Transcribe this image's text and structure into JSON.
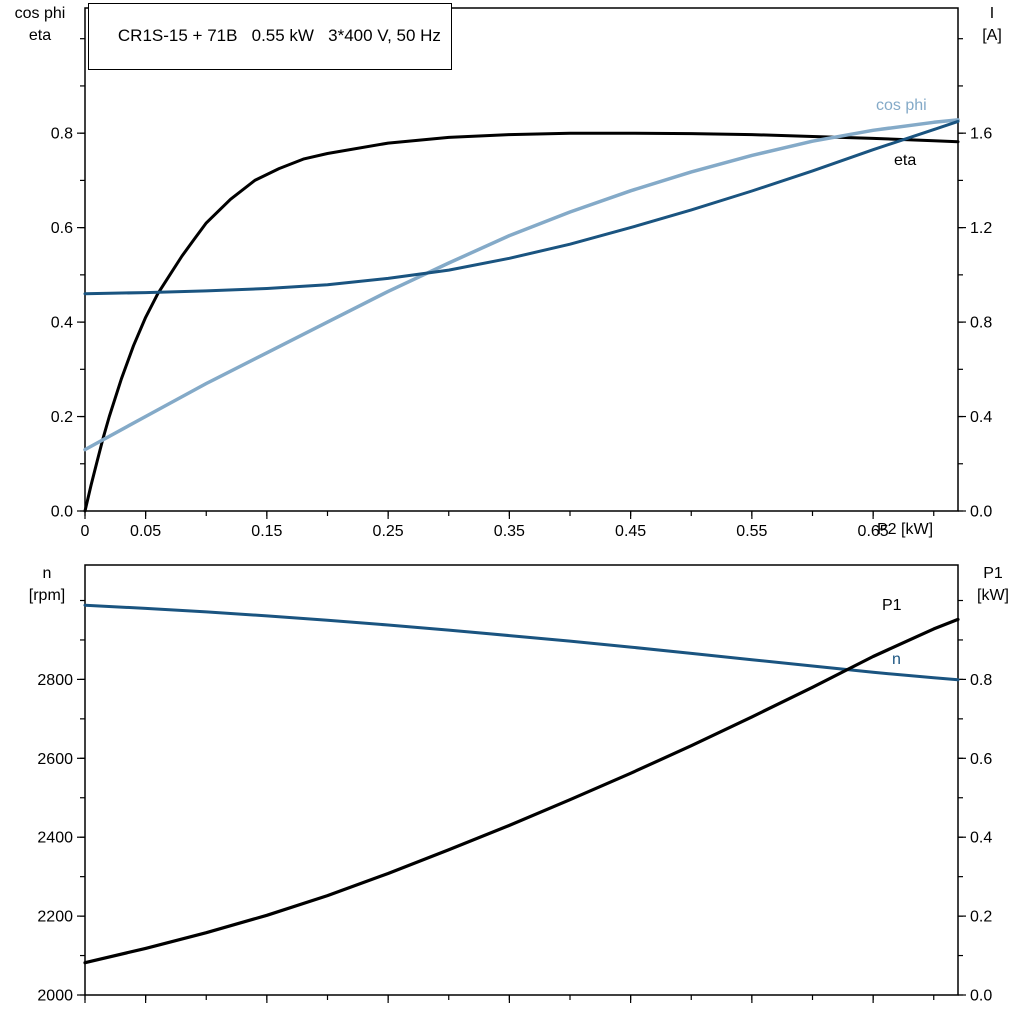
{
  "colors": {
    "black": "#000000",
    "dark_blue": "#1a5480",
    "light_blue": "#84aac8"
  },
  "chart_data": [
    {
      "type": "line",
      "title": "CR1S-15 + 71B   0.55 kW   3*400 V, 50 Hz",
      "grid": false,
      "legend_position": "inline-curve-labels",
      "x_axis": {
        "label": "P2 [kW]",
        "min": 0,
        "max": 0.72,
        "minor_step": 0.05,
        "major_ticks": [
          0,
          0.05,
          0.15,
          0.25,
          0.35,
          0.45,
          0.55,
          0.65
        ],
        "tick_labels": [
          "0",
          "0.05",
          "0.15",
          "0.25",
          "0.35",
          "0.45",
          "0.55",
          "0.65"
        ]
      },
      "left_axis": {
        "label_line1": "cos phi",
        "label_line2": "eta",
        "min": 0,
        "max": 1.065,
        "minor_step": 0.1,
        "major_ticks": [
          0,
          0.2,
          0.4,
          0.6,
          0.8
        ],
        "tick_labels": [
          "0.0",
          "0.2",
          "0.4",
          "0.6",
          "0.8"
        ]
      },
      "right_axis": {
        "label_line1": "I",
        "label_line2": "[A]",
        "min": 0,
        "max": 2.13,
        "minor_step": 0.2,
        "major_ticks": [
          0,
          0.4,
          0.8,
          1.2,
          1.6
        ],
        "tick_labels": [
          "0.0",
          "0.4",
          "0.8",
          "1.2",
          "1.6"
        ]
      },
      "series": [
        {
          "name": "eta",
          "label": "eta",
          "axis": "left",
          "color": "#000000",
          "width": 3,
          "points": [
            [
              0,
              0
            ],
            [
              0.005,
              0.055
            ],
            [
              0.01,
              0.105
            ],
            [
              0.015,
              0.155
            ],
            [
              0.02,
              0.2
            ],
            [
              0.03,
              0.28
            ],
            [
              0.04,
              0.35
            ],
            [
              0.05,
              0.41
            ],
            [
              0.06,
              0.46
            ],
            [
              0.07,
              0.5
            ],
            [
              0.08,
              0.54
            ],
            [
              0.09,
              0.575
            ],
            [
              0.1,
              0.61
            ],
            [
              0.12,
              0.66
            ],
            [
              0.14,
              0.7
            ],
            [
              0.16,
              0.725
            ],
            [
              0.18,
              0.745
            ],
            [
              0.2,
              0.757
            ],
            [
              0.25,
              0.779
            ],
            [
              0.3,
              0.791
            ],
            [
              0.35,
              0.797
            ],
            [
              0.4,
              0.8
            ],
            [
              0.45,
              0.8
            ],
            [
              0.5,
              0.799
            ],
            [
              0.55,
              0.797
            ],
            [
              0.6,
              0.793
            ],
            [
              0.65,
              0.789
            ],
            [
              0.7,
              0.784
            ],
            [
              0.72,
              0.782
            ]
          ]
        },
        {
          "name": "cos phi",
          "label": "cos phi",
          "axis": "left",
          "color": "#84aac8",
          "width": 3.5,
          "points": [
            [
              0,
              0.13
            ],
            [
              0.05,
              0.2
            ],
            [
              0.1,
              0.27
            ],
            [
              0.15,
              0.335
            ],
            [
              0.2,
              0.4
            ],
            [
              0.25,
              0.465
            ],
            [
              0.3,
              0.525
            ],
            [
              0.35,
              0.583
            ],
            [
              0.4,
              0.633
            ],
            [
              0.45,
              0.678
            ],
            [
              0.5,
              0.718
            ],
            [
              0.55,
              0.753
            ],
            [
              0.6,
              0.783
            ],
            [
              0.65,
              0.806
            ],
            [
              0.7,
              0.823
            ],
            [
              0.72,
              0.828
            ]
          ]
        },
        {
          "name": "I",
          "label": "",
          "axis": "right",
          "color": "#1a5480",
          "width": 3,
          "points": [
            [
              0,
              0.92
            ],
            [
              0.05,
              0.925
            ],
            [
              0.1,
              0.932
            ],
            [
              0.15,
              0.942
            ],
            [
              0.2,
              0.958
            ],
            [
              0.25,
              0.985
            ],
            [
              0.3,
              1.02
            ],
            [
              0.35,
              1.07
            ],
            [
              0.4,
              1.13
            ],
            [
              0.45,
              1.2
            ],
            [
              0.5,
              1.275
            ],
            [
              0.55,
              1.355
            ],
            [
              0.6,
              1.44
            ],
            [
              0.65,
              1.53
            ],
            [
              0.7,
              1.615
            ],
            [
              0.72,
              1.65
            ]
          ]
        }
      ]
    },
    {
      "type": "line",
      "title": "",
      "grid": false,
      "x_axis": {
        "label": "",
        "min": 0,
        "max": 0.72,
        "minor_step": 0.05,
        "major_ticks": [
          0,
          0.05,
          0.15,
          0.25,
          0.35,
          0.45,
          0.55,
          0.65
        ],
        "tick_labels": []
      },
      "left_axis": {
        "label_line1": "n",
        "label_line2": "[rpm]",
        "min": 2000,
        "max": 3090,
        "minor_step": 100,
        "major_ticks": [
          2000,
          2200,
          2400,
          2600,
          2800
        ],
        "tick_labels": [
          "2000",
          "2200",
          "2400",
          "2600",
          "2800"
        ]
      },
      "right_axis": {
        "label_line1": "P1",
        "label_line2": "[kW]",
        "min": 0,
        "max": 1.09,
        "minor_step": 0.1,
        "major_ticks": [
          0,
          0.2,
          0.4,
          0.6,
          0.8
        ],
        "tick_labels": [
          "0.0",
          "0.2",
          "0.4",
          "0.6",
          "0.8"
        ]
      },
      "series": [
        {
          "name": "n",
          "label": "n",
          "axis": "left",
          "color": "#1a5480",
          "width": 3,
          "points": [
            [
              0,
              2988
            ],
            [
              0.05,
              2980
            ],
            [
              0.1,
              2971
            ],
            [
              0.15,
              2961
            ],
            [
              0.2,
              2950
            ],
            [
              0.25,
              2938
            ],
            [
              0.3,
              2925
            ],
            [
              0.35,
              2911
            ],
            [
              0.4,
              2897
            ],
            [
              0.45,
              2882
            ],
            [
              0.5,
              2866
            ],
            [
              0.55,
              2850
            ],
            [
              0.6,
              2834
            ],
            [
              0.65,
              2818
            ],
            [
              0.7,
              2804
            ],
            [
              0.72,
              2799
            ]
          ]
        },
        {
          "name": "P1",
          "label": "P1",
          "axis": "right",
          "color": "#000000",
          "width": 3.2,
          "points": [
            [
              0,
              0.082
            ],
            [
              0.05,
              0.118
            ],
            [
              0.1,
              0.158
            ],
            [
              0.15,
              0.202
            ],
            [
              0.2,
              0.252
            ],
            [
              0.25,
              0.308
            ],
            [
              0.3,
              0.368
            ],
            [
              0.35,
              0.43
            ],
            [
              0.4,
              0.495
            ],
            [
              0.45,
              0.562
            ],
            [
              0.5,
              0.632
            ],
            [
              0.55,
              0.705
            ],
            [
              0.6,
              0.78
            ],
            [
              0.65,
              0.858
            ],
            [
              0.7,
              0.928
            ],
            [
              0.72,
              0.952
            ]
          ]
        }
      ]
    }
  ]
}
